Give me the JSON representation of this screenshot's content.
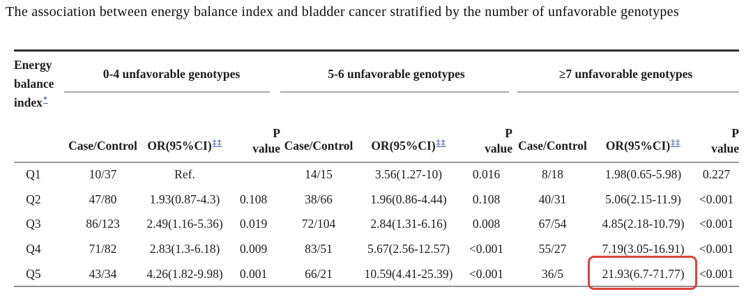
{
  "title": "The association between energy balance index and bladder cancer stratified by the number of unfavorable genotypes",
  "colors": {
    "marker_blue": "#5066ac",
    "highlight_red": "#d7473a"
  },
  "table": {
    "row_header": {
      "line1": "Energy",
      "line2": "balance",
      "line3": "index",
      "footnote_marker": "*"
    },
    "groups": [
      {
        "label": "0-4 unfavorable genotypes"
      },
      {
        "label": "5-6 unfavorable genotypes"
      },
      {
        "label": "≥7 unfavorable genotypes"
      }
    ],
    "subheaders": {
      "case_control": "Case/Control",
      "or_label": "OR(95%CI)",
      "or_marker": "‡‡",
      "p_line1": "P",
      "p_line2": "value"
    },
    "rows": [
      {
        "label": "Q1",
        "cells": [
          "10/37",
          "Ref.",
          "",
          "14/15",
          "3.56(1.27-10)",
          "0.016",
          "8/18",
          "1.98(0.65-5.98)",
          "0.227"
        ]
      },
      {
        "label": "Q2",
        "cells": [
          "47/80",
          "1.93(0.87-4.3)",
          "0.108",
          "38/66",
          "1.96(0.86-4.44)",
          "0.108",
          "40/31",
          "5.06(2.15-11.9)",
          "<0.001"
        ]
      },
      {
        "label": "Q3",
        "cells": [
          "86/123",
          "2.49(1.16-5.36)",
          "0.019",
          "72/104",
          "2.84(1.31-6.16)",
          "0.008",
          "67/54",
          "4.85(2.18-10.79)",
          "<0.001"
        ]
      },
      {
        "label": "Q4",
        "cells": [
          "71/82",
          "2.83(1.3-6.18)",
          "0.009",
          "83/51",
          "5.67(2.56-12.57)",
          "<0.001",
          "55/27",
          "7.19(3.05-16.91)",
          "<0.001"
        ]
      },
      {
        "label": "Q5",
        "cells": [
          "43/34",
          "4.26(1.82-9.98)",
          "0.001",
          "66/21",
          "10.59(4.41-25.39)",
          "<0.001",
          "36/5",
          "21.93(6.7-71.77)",
          "<0.001"
        ]
      }
    ],
    "highlight": {
      "row": "Q5",
      "column": "≥7 unfavorable genotypes OR(95%CI)",
      "value": "21.93(6.7-71.77)"
    }
  }
}
